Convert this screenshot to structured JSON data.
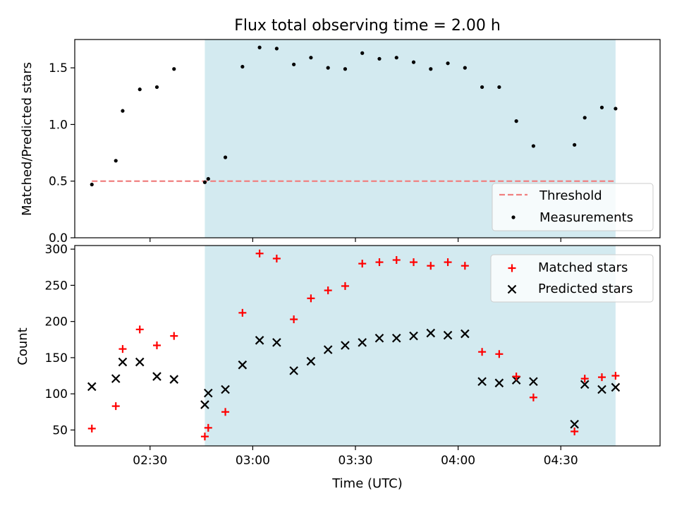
{
  "chart_data": [
    {
      "type": "scatter",
      "title": "Flux total observing time = 2.00 h",
      "ylabel": "Matched/Predicted stars",
      "xlabel": "",
      "ylim": [
        0,
        1.75
      ],
      "yticks": [
        0.0,
        0.5,
        1.0,
        1.5
      ],
      "ytick_labels": [
        "0.0",
        "0.5",
        "1.0",
        "1.5"
      ],
      "xlim": [
        "02:08",
        "04:59"
      ],
      "grid": false,
      "legend_position": "lower-right",
      "shaded_span": {
        "start": "02:46",
        "end": "04:46",
        "color": "#d3eaf0"
      },
      "threshold": {
        "name": "Threshold",
        "value": 0.5,
        "x_start": "02:13",
        "x_end": "04:46",
        "color": "#f08080"
      },
      "series": [
        {
          "name": "Measurements",
          "color": "#000000",
          "x": [
            "02:13",
            "02:20",
            "02:22",
            "02:27",
            "02:32",
            "02:37",
            "02:46",
            "02:47",
            "02:52",
            "02:57",
            "03:02",
            "03:07",
            "03:12",
            "03:17",
            "03:22",
            "03:27",
            "03:32",
            "03:37",
            "03:42",
            "03:47",
            "03:52",
            "03:57",
            "04:02",
            "04:07",
            "04:12",
            "04:17",
            "04:22",
            "04:34",
            "04:37",
            "04:42",
            "04:46"
          ],
          "y": [
            0.47,
            0.68,
            1.12,
            1.31,
            1.33,
            1.49,
            0.49,
            0.52,
            0.71,
            1.51,
            1.68,
            1.67,
            1.53,
            1.59,
            1.5,
            1.49,
            1.63,
            1.58,
            1.59,
            1.55,
            1.49,
            1.54,
            1.5,
            1.33,
            1.33,
            1.03,
            0.81,
            0.82,
            1.06,
            1.15,
            1.14
          ]
        }
      ]
    },
    {
      "type": "scatter",
      "title": "",
      "ylabel": "Count",
      "xlabel": "Time (UTC)",
      "ylim": [
        28,
        305
      ],
      "yticks": [
        50,
        100,
        150,
        200,
        250,
        300
      ],
      "ytick_labels": [
        "50",
        "100",
        "150",
        "200",
        "250",
        "300"
      ],
      "xlim": [
        "02:08",
        "04:59"
      ],
      "xticks": [
        "02:30",
        "03:00",
        "03:30",
        "04:00",
        "04:30"
      ],
      "xtick_labels": [
        "02:30",
        "03:00",
        "03:30",
        "04:00",
        "04:30"
      ],
      "grid": false,
      "legend_position": "top-right",
      "shaded_span": {
        "start": "02:46",
        "end": "04:46",
        "color": "#d3eaf0"
      },
      "series": [
        {
          "name": "Matched stars",
          "marker": "plus",
          "color": "#ff0000",
          "x": [
            "02:13",
            "02:20",
            "02:22",
            "02:27",
            "02:32",
            "02:37",
            "02:46",
            "02:47",
            "02:52",
            "02:57",
            "03:02",
            "03:07",
            "03:12",
            "03:17",
            "03:22",
            "03:27",
            "03:32",
            "03:37",
            "03:42",
            "03:47",
            "03:52",
            "03:57",
            "04:02",
            "04:07",
            "04:12",
            "04:17",
            "04:22",
            "04:34",
            "04:37",
            "04:42",
            "04:46"
          ],
          "y": [
            52,
            83,
            162,
            189,
            167,
            180,
            41,
            53,
            75,
            212,
            294,
            287,
            203,
            232,
            243,
            249,
            280,
            282,
            285,
            282,
            277,
            282,
            277,
            158,
            155,
            124,
            95,
            48,
            121,
            123,
            125
          ]
        },
        {
          "name": "Predicted stars",
          "marker": "x",
          "color": "#000000",
          "x": [
            "02:13",
            "02:20",
            "02:22",
            "02:27",
            "02:32",
            "02:37",
            "02:46",
            "02:47",
            "02:52",
            "02:57",
            "03:02",
            "03:07",
            "03:12",
            "03:17",
            "03:22",
            "03:27",
            "03:32",
            "03:37",
            "03:42",
            "03:47",
            "03:52",
            "03:57",
            "04:02",
            "04:07",
            "04:12",
            "04:17",
            "04:22",
            "04:34",
            "04:37",
            "04:42",
            "04:46"
          ],
          "y": [
            110,
            121,
            144,
            144,
            124,
            120,
            85,
            101,
            106,
            140,
            174,
            171,
            132,
            145,
            161,
            167,
            171,
            177,
            177,
            180,
            184,
            181,
            183,
            117,
            115,
            119,
            117,
            58,
            113,
            106,
            109
          ]
        }
      ]
    }
  ]
}
